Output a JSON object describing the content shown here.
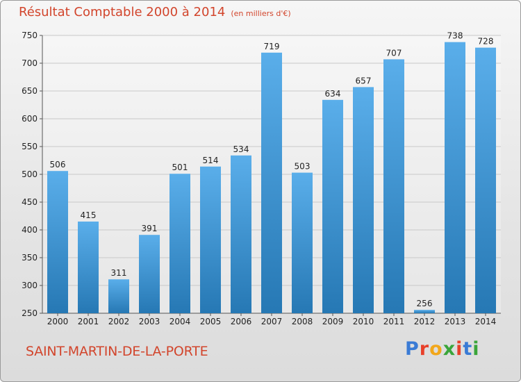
{
  "header": {
    "title": "Résultat Comptable 2000 à 2014",
    "unit": "(en milliers d'€)"
  },
  "footer": {
    "commune": "SAINT-MARTIN-DE-LA-PORTE",
    "logo_text": "Proxiti",
    "logo_colors": [
      "#3a7bd5",
      "#e8402a",
      "#f2a71b",
      "#3aa53a",
      "#e8402a",
      "#3a7bd5",
      "#3aa53a"
    ]
  },
  "colors": {
    "title": "#d2452c",
    "bar_top": "#5aaeea",
    "bar_bottom": "#2678b4",
    "grid": "#c8c8c8",
    "axis_text": "#222222"
  },
  "chart_data": {
    "type": "bar",
    "title": "Résultat Comptable 2000 à 2014",
    "subtitle": "(en milliers d'€)",
    "categories": [
      "2000",
      "2001",
      "2002",
      "2003",
      "2004",
      "2005",
      "2006",
      "2007",
      "2008",
      "2009",
      "2010",
      "2011",
      "2012",
      "2013",
      "2014"
    ],
    "values": [
      506,
      415,
      311,
      391,
      501,
      514,
      534,
      719,
      503,
      634,
      657,
      707,
      256,
      738,
      728
    ],
    "ylim": [
      250,
      750
    ],
    "yticks": [
      250,
      300,
      350,
      400,
      450,
      500,
      550,
      600,
      650,
      700,
      750
    ],
    "grid": true,
    "xlabel": "",
    "ylabel": ""
  }
}
